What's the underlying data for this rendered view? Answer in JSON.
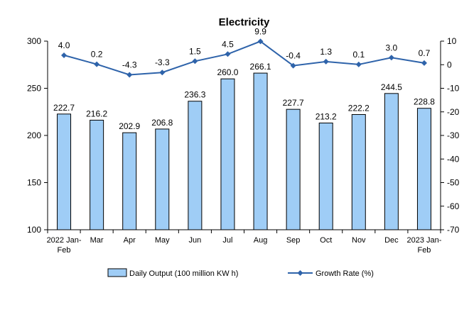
{
  "chart_data": {
    "type": "bar",
    "title": "Electricity",
    "categories": [
      "2022 Jan-Feb",
      "Mar",
      "Apr",
      "May",
      "Jun",
      "Jul",
      "Aug",
      "Sep",
      "Oct",
      "Nov",
      "Dec",
      "2023 Jan-Feb"
    ],
    "category_lines": [
      [
        "2022 Jan-",
        "Feb"
      ],
      [
        "Mar"
      ],
      [
        "Apr"
      ],
      [
        "May"
      ],
      [
        "Jun"
      ],
      [
        "Jul"
      ],
      [
        "Aug"
      ],
      [
        "Sep"
      ],
      [
        "Oct"
      ],
      [
        "Nov"
      ],
      [
        "Dec"
      ],
      [
        "2023 Jan-",
        "Feb"
      ]
    ],
    "series": [
      {
        "name": "Daily Output (100 million KW h)",
        "type": "bar",
        "axis": "left",
        "color": "#9fcdf6",
        "values": [
          222.7,
          216.2,
          202.9,
          206.8,
          236.3,
          260.0,
          266.1,
          227.7,
          213.2,
          222.2,
          244.5,
          228.8
        ],
        "labels": [
          "222.7",
          "216.2",
          "202.9",
          "206.8",
          "236.3",
          "260.0",
          "266.1",
          "227.7",
          "213.2",
          "222.2",
          "244.5",
          "228.8"
        ]
      },
      {
        "name": "Growth Rate (%)",
        "type": "line",
        "axis": "right",
        "color": "#2e63aa",
        "values": [
          4.0,
          0.2,
          -4.3,
          -3.3,
          1.5,
          4.5,
          9.9,
          -0.4,
          1.3,
          0.1,
          3.0,
          0.7
        ],
        "labels": [
          "4.0",
          "0.2",
          "-4.3",
          "-3.3",
          "1.5",
          "4.5",
          "9.9",
          "-0.4",
          "1.3",
          "0.1",
          "3.0",
          "0.7"
        ]
      }
    ],
    "ylim_left": [
      100,
      300
    ],
    "yticks_left": [
      100,
      150,
      200,
      250,
      300
    ],
    "ylim_right": [
      -70,
      10
    ],
    "yticks_right": [
      10,
      0,
      -10,
      -20,
      -30,
      -40,
      -50,
      -60,
      -70
    ],
    "grid": false,
    "legend": "bottom"
  }
}
